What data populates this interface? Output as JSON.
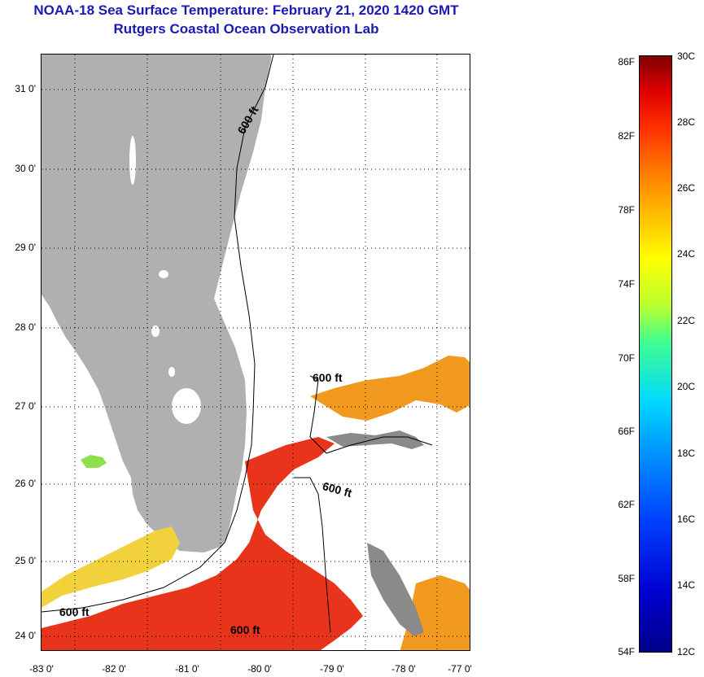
{
  "title": {
    "line1": "NOAA-18 Sea Surface Temperature:  February 21, 2020 1420 GMT",
    "line2": "Rutgers Coastal Ocean Observation Lab"
  },
  "map": {
    "y_ticks": [
      "31 0'",
      "30 0'",
      "29 0'",
      "28 0'",
      "27 0'",
      "26 0'",
      "25 0'",
      "24 0'"
    ],
    "x_ticks": [
      "-83 0'",
      "-82 0'",
      "-81 0'",
      "-80 0'",
      "-79 0'",
      "-78 0'",
      "-77 0'"
    ],
    "contour_labels": [
      "600 ft",
      "600 ft",
      "600 ft",
      "600 ft",
      "600 ft"
    ]
  },
  "colorbar": {
    "fahrenheit": [
      "86F",
      "82F",
      "78F",
      "74F",
      "70F",
      "66F",
      "62F",
      "58F",
      "54F"
    ],
    "celsius": [
      "30C",
      "28C",
      "26C",
      "24C",
      "22C",
      "20C",
      "18C",
      "16C",
      "14C",
      "12C"
    ],
    "colors": {
      "land": "#b0b0b0",
      "warm_red": "#e8341a",
      "orange": "#f29a1f",
      "yellow": "#f2d23c",
      "green": "#8ee04a"
    }
  }
}
